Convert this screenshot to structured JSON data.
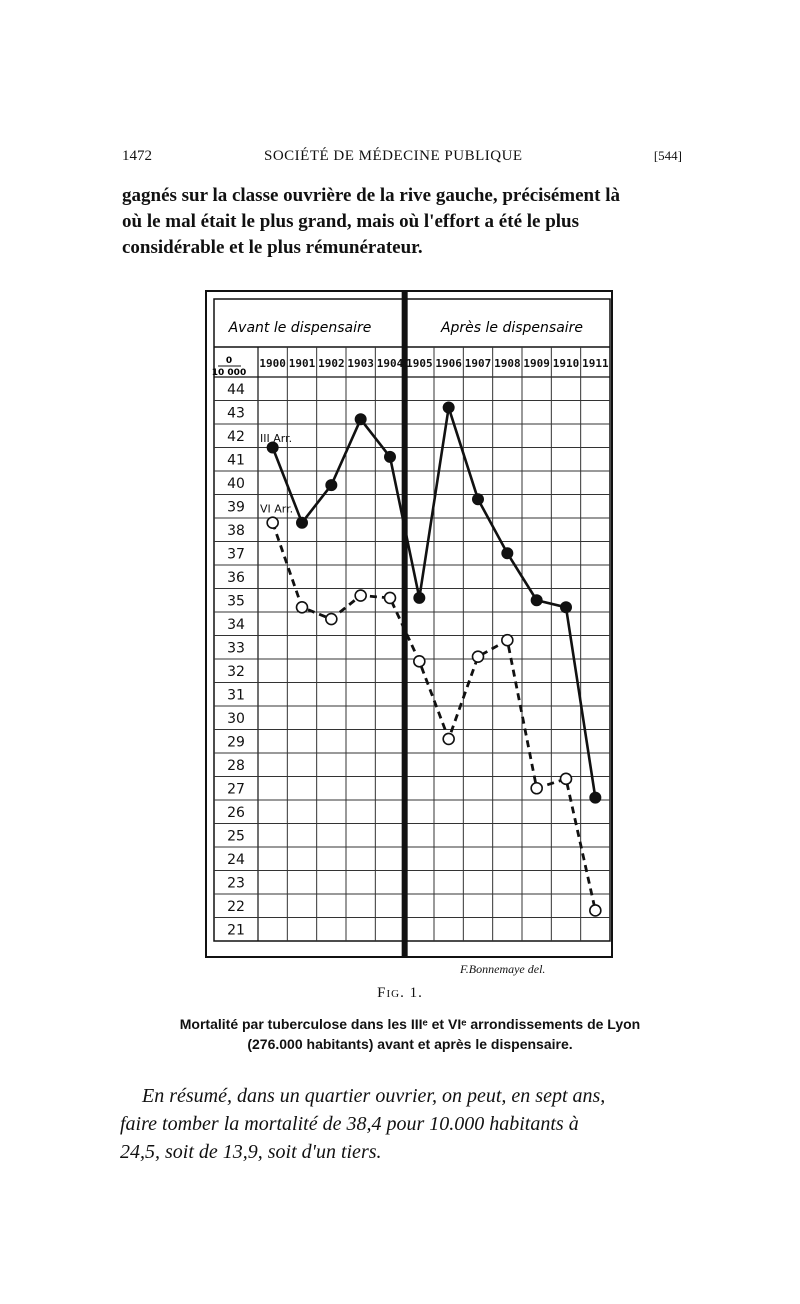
{
  "header": {
    "page_number": "1472",
    "running_title": "SOCIÉTÉ DE MÉDECINE PUBLIQUE",
    "section_number": "[544]"
  },
  "intro_paragraph": {
    "lines": [
      "gagnés sur la classe ouvrière de la rive gauche, précisément là",
      "où le mal était le plus grand, mais où l'effort a été le plus",
      "considérable et le plus rémunérateur."
    ]
  },
  "figure": {
    "label": "Fig. 1.",
    "caption_lines": [
      "Mortalité par tuberculose dans les IIIᵉ et VIᵉ arrondissements de Lyon",
      "(276.000 habitants) avant et après le dispensaire."
    ],
    "signature": "F.Bonnemaye del.",
    "colors": {
      "ink": "#111111",
      "grid": "#333333",
      "paper": "#ffffff"
    }
  },
  "chart_data": {
    "type": "line",
    "phase_labels": {
      "before": "Avant le dispensaire",
      "after": "Après le dispensaire"
    },
    "unit_label": {
      "numerator": "0",
      "denominator": "10 000"
    },
    "x": [
      "1900",
      "1901",
      "1902",
      "1903",
      "1904",
      "1905",
      "1906",
      "1907",
      "1908",
      "1909",
      "1910",
      "1911"
    ],
    "y_ticks": [
      44,
      43,
      42,
      41,
      40,
      39,
      38,
      37,
      36,
      35,
      34,
      33,
      32,
      31,
      30,
      29,
      28,
      27,
      26,
      25,
      24,
      23,
      22,
      21
    ],
    "ylim": [
      21,
      44
    ],
    "divider_after": "1904",
    "grid": true,
    "series": [
      {
        "name": "III Arr.",
        "style": "solid",
        "marker": "filled",
        "values": [
          41.5,
          38.3,
          39.9,
          42.7,
          41.1,
          35.1,
          43.2,
          39.3,
          37.0,
          35.0,
          34.7,
          26.6
        ]
      },
      {
        "name": "VI Arr.",
        "style": "dashed",
        "marker": "open",
        "values": [
          38.3,
          34.7,
          34.2,
          35.2,
          35.1,
          32.4,
          29.1,
          32.6,
          33.3,
          27.0,
          27.4,
          21.8
        ]
      }
    ]
  },
  "closing_paragraph": {
    "lines": [
      "En résumé, dans un quartier ouvrier, on peut, en sept ans,",
      "faire tomber la mortalité de 38,4 pour 10.000 habitants à",
      "24,5, soit de 13,9, soit d'un tiers."
    ]
  }
}
